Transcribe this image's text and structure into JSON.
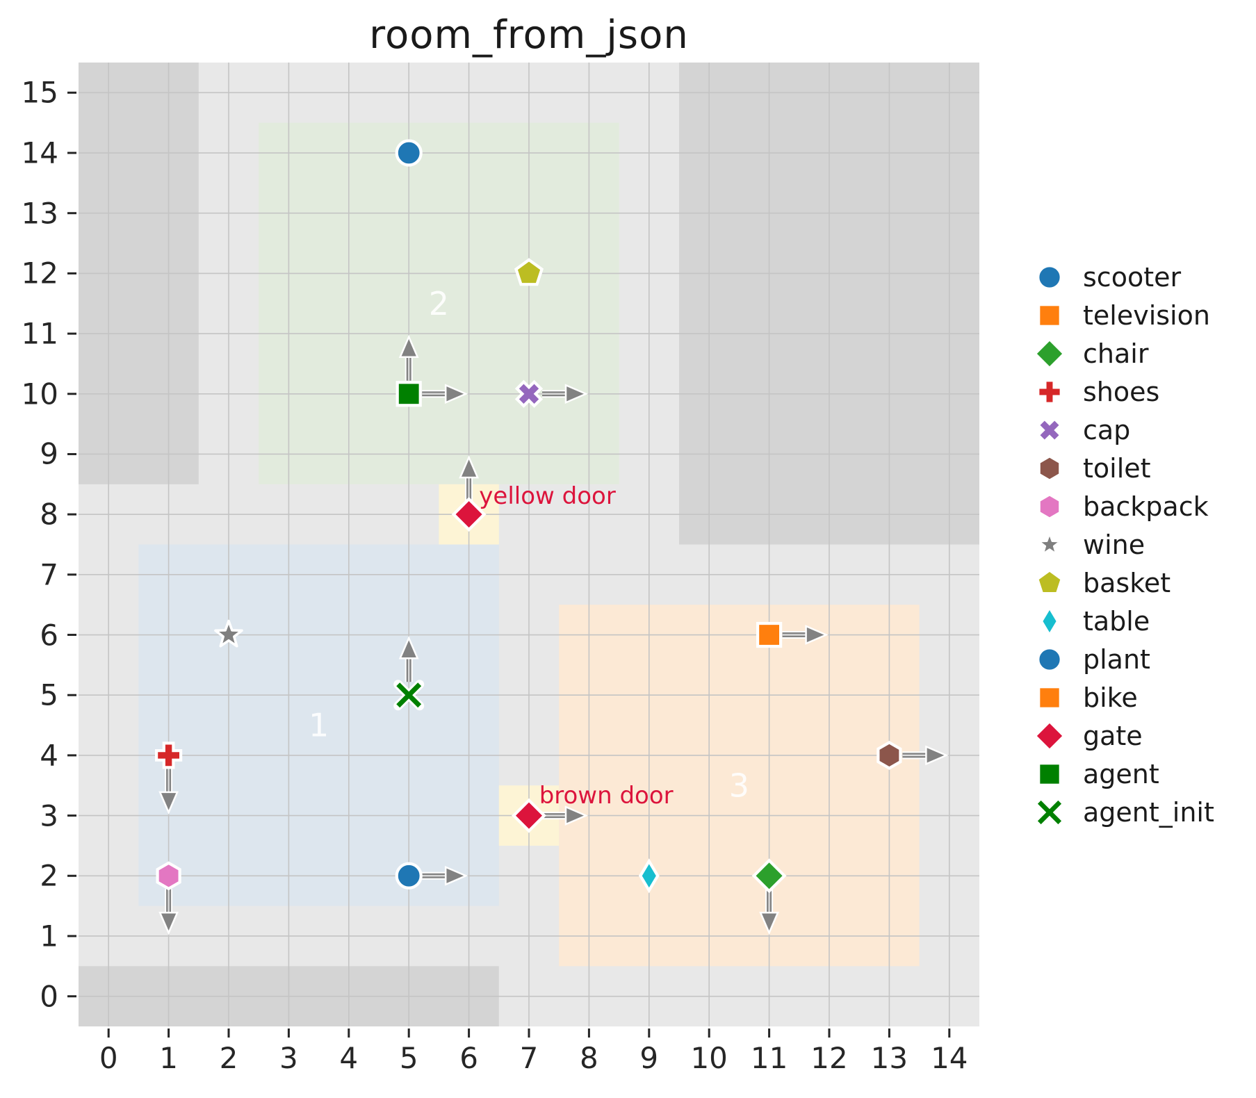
{
  "title": "room_from_json",
  "chart_data": {
    "type": "scatter",
    "title": "room_from_json",
    "xlim": [
      -0.5,
      14.5
    ],
    "ylim": [
      -0.5,
      15.5
    ],
    "grid": true,
    "x_tick_labels": [
      "0",
      "1",
      "2",
      "3",
      "4",
      "5",
      "6",
      "7",
      "8",
      "9",
      "10",
      "11",
      "12",
      "13",
      "14"
    ],
    "y_tick_labels": [
      "0",
      "1",
      "2",
      "3",
      "4",
      "5",
      "6",
      "7",
      "8",
      "9",
      "10",
      "11",
      "12",
      "13",
      "14",
      "15"
    ],
    "colors": {
      "plot_background": "#e8e8e8",
      "wall": "#d4d4d4",
      "gridline": "#c4c4c4",
      "room_label_text": "#ffffff",
      "door_cell": "#fdf4d5",
      "door_label_text": "#dc143c",
      "arrow": "#828282",
      "tick_text": "#262626",
      "marker_edge": "#ffffff"
    },
    "rooms": [
      {
        "label": "1",
        "x0": 0.5,
        "x1": 6.5,
        "y0": 1.5,
        "y1": 7.5,
        "fill": "#dde6ee",
        "label_x": 3.5,
        "label_y": 4.5
      },
      {
        "label": "2",
        "x0": 2.5,
        "x1": 8.5,
        "y0": 8.5,
        "y1": 14.5,
        "fill": "#e2ebdd",
        "label_x": 5.5,
        "label_y": 11.5
      },
      {
        "label": "3",
        "x0": 7.5,
        "x1": 13.5,
        "y0": 0.5,
        "y1": 6.5,
        "fill": "#fce9d5",
        "label_x": 10.5,
        "label_y": 3.5
      }
    ],
    "walls": [
      {
        "x0": -0.5,
        "x1": 1.5,
        "y0": 8.5,
        "y1": 15.5
      },
      {
        "x0": 9.5,
        "x1": 14.5,
        "y0": 7.5,
        "y1": 15.5
      },
      {
        "x0": -0.5,
        "x1": 6.5,
        "y0": -0.5,
        "y1": 0.5
      }
    ],
    "doors": [
      {
        "label": "yellow door",
        "cell_x": 6,
        "cell_y": 8,
        "label_x": 6.17,
        "label_y": 8.3
      },
      {
        "label": "brown door",
        "cell_x": 7,
        "cell_y": 3,
        "label_x": 7.17,
        "label_y": 3.33
      }
    ],
    "items": [
      {
        "name": "scooter",
        "x": 5,
        "y": 14,
        "marker": "circle",
        "color": "#1f77b4",
        "arrows": []
      },
      {
        "name": "basket",
        "x": 7,
        "y": 12,
        "marker": "pentagon",
        "color": "#bcbd22",
        "arrows": []
      },
      {
        "name": "agent",
        "x": 5,
        "y": 10,
        "marker": "square",
        "color": "#008000",
        "arrows": [
          "up",
          "right"
        ]
      },
      {
        "name": "cap",
        "x": 7,
        "y": 10,
        "marker": "x-filled",
        "color": "#9467bd",
        "arrows": [
          "right"
        ]
      },
      {
        "name": "gate",
        "x": 6,
        "y": 8,
        "marker": "diamond",
        "color": "#dc143c",
        "arrows": [
          "up"
        ]
      },
      {
        "name": "wine",
        "x": 2,
        "y": 6,
        "marker": "star",
        "color": "#7f7f7f",
        "arrows": []
      },
      {
        "name": "agent_init",
        "x": 5,
        "y": 5,
        "marker": "x-thin",
        "color": "#008000",
        "arrows": [
          "up"
        ]
      },
      {
        "name": "shoes",
        "x": 1,
        "y": 4,
        "marker": "plus",
        "color": "#d62728",
        "arrows": [
          "down"
        ]
      },
      {
        "name": "backpack",
        "x": 1,
        "y": 2,
        "marker": "hexagon",
        "color": "#e377c2",
        "arrows": [
          "down"
        ]
      },
      {
        "name": "plant",
        "x": 5,
        "y": 2,
        "marker": "circle",
        "color": "#1f77b4",
        "arrows": [
          "right"
        ]
      },
      {
        "name": "gate",
        "x": 7,
        "y": 3,
        "marker": "diamond",
        "color": "#dc143c",
        "arrows": [
          "right"
        ]
      },
      {
        "name": "table",
        "x": 9,
        "y": 2,
        "marker": "thin-diamond",
        "color": "#17becf",
        "arrows": []
      },
      {
        "name": "chair",
        "x": 11,
        "y": 2,
        "marker": "diamond",
        "color": "#2ca02c",
        "arrows": [
          "down"
        ]
      },
      {
        "name": "television",
        "x": 11,
        "y": 6,
        "marker": "square",
        "color": "#ff7f0e",
        "arrows": [
          "right"
        ]
      },
      {
        "name": "toilet",
        "x": 13,
        "y": 4,
        "marker": "hexagon",
        "color": "#8c564b",
        "arrows": [
          "right"
        ]
      }
    ],
    "legend": [
      {
        "label": "scooter",
        "marker": "circle",
        "color": "#1f77b4"
      },
      {
        "label": "television",
        "marker": "square",
        "color": "#ff7f0e"
      },
      {
        "label": "chair",
        "marker": "diamond",
        "color": "#2ca02c"
      },
      {
        "label": "shoes",
        "marker": "plus",
        "color": "#d62728"
      },
      {
        "label": "cap",
        "marker": "x-filled",
        "color": "#9467bd"
      },
      {
        "label": "toilet",
        "marker": "hexagon",
        "color": "#8c564b"
      },
      {
        "label": "backpack",
        "marker": "hexagon",
        "color": "#e377c2"
      },
      {
        "label": "wine",
        "marker": "star",
        "color": "#7f7f7f"
      },
      {
        "label": "basket",
        "marker": "pentagon",
        "color": "#bcbd22"
      },
      {
        "label": "table",
        "marker": "thin-diamond",
        "color": "#17becf"
      },
      {
        "label": "plant",
        "marker": "circle",
        "color": "#1f77b4"
      },
      {
        "label": "bike",
        "marker": "square",
        "color": "#ff7f0e"
      },
      {
        "label": "gate",
        "marker": "diamond",
        "color": "#dc143c"
      },
      {
        "label": "agent",
        "marker": "square",
        "color": "#008000"
      },
      {
        "label": "agent_init",
        "marker": "x-thin",
        "color": "#008000"
      }
    ]
  }
}
